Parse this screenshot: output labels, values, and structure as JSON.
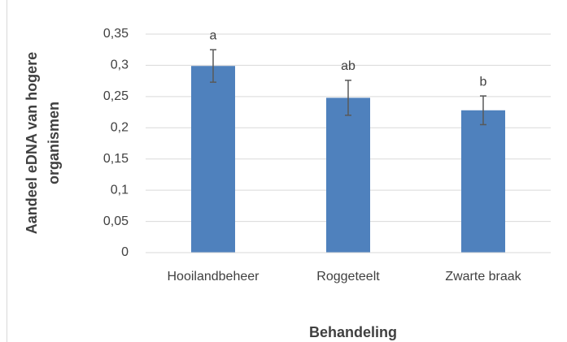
{
  "chart_data": {
    "type": "bar",
    "categories": [
      "Hooilandbeheer",
      "Roggeteelt",
      "Zwarte braak"
    ],
    "series": [
      {
        "color": "#4f81bd",
        "values": [
          0.299,
          0.248,
          0.228
        ],
        "errors": [
          0.026,
          0.028,
          0.023
        ],
        "error_color": "#595959"
      }
    ],
    "annotations": [
      "a",
      "ab",
      "b"
    ],
    "xlabel": "Behandeling",
    "ylabel": [
      "Aandeel eDNA van hogere",
      "organismen"
    ],
    "ylim": [
      0,
      0.35
    ],
    "yticks": [
      0,
      {
        "value": 0.05,
        "label": "0,05"
      },
      {
        "value": 0.1,
        "label": "0,1"
      },
      {
        "value": 0.15,
        "label": "0,15"
      },
      {
        "value": 0.2,
        "label": "0,2"
      },
      {
        "value": 0.25,
        "label": "0,25"
      },
      {
        "value": 0.3,
        "label": "0,3"
      },
      {
        "value": 0.35,
        "label": "0,35"
      }
    ],
    "grid": true
  }
}
